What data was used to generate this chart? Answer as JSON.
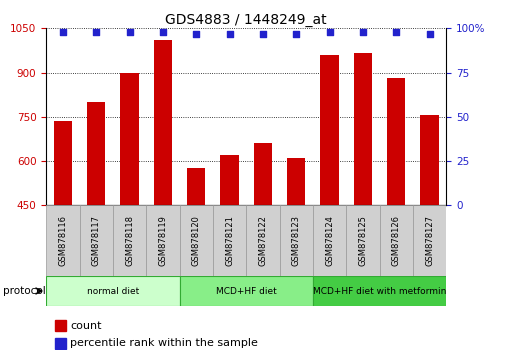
{
  "title": "GDS4883 / 1448249_at",
  "samples": [
    "GSM878116",
    "GSM878117",
    "GSM878118",
    "GSM878119",
    "GSM878120",
    "GSM878121",
    "GSM878122",
    "GSM878123",
    "GSM878124",
    "GSM878125",
    "GSM878126",
    "GSM878127"
  ],
  "bar_values": [
    735,
    800,
    900,
    1010,
    575,
    620,
    660,
    610,
    960,
    965,
    880,
    755
  ],
  "percentile_values": [
    98,
    98,
    98,
    98,
    97,
    97,
    97,
    97,
    98,
    98,
    98,
    97
  ],
  "ylim_left": [
    450,
    1050
  ],
  "ylim_right": [
    0,
    100
  ],
  "yticks_left": [
    450,
    600,
    750,
    900,
    1050
  ],
  "yticks_right": [
    0,
    25,
    50,
    75,
    100
  ],
  "bar_color": "#cc0000",
  "dot_color": "#2222cc",
  "background_color": "#ffffff",
  "protocol_groups": [
    {
      "label": "normal diet",
      "start": 0,
      "end": 4,
      "color": "#ccffcc"
    },
    {
      "label": "MCD+HF diet",
      "start": 4,
      "end": 8,
      "color": "#88ee88"
    },
    {
      "label": "MCD+HF diet with metformin",
      "start": 8,
      "end": 12,
      "color": "#44cc44"
    }
  ],
  "ylabel_left_color": "#cc0000",
  "ylabel_right_color": "#2222cc",
  "title_fontsize": 10,
  "tick_fontsize": 7.5,
  "legend_fontsize": 8
}
